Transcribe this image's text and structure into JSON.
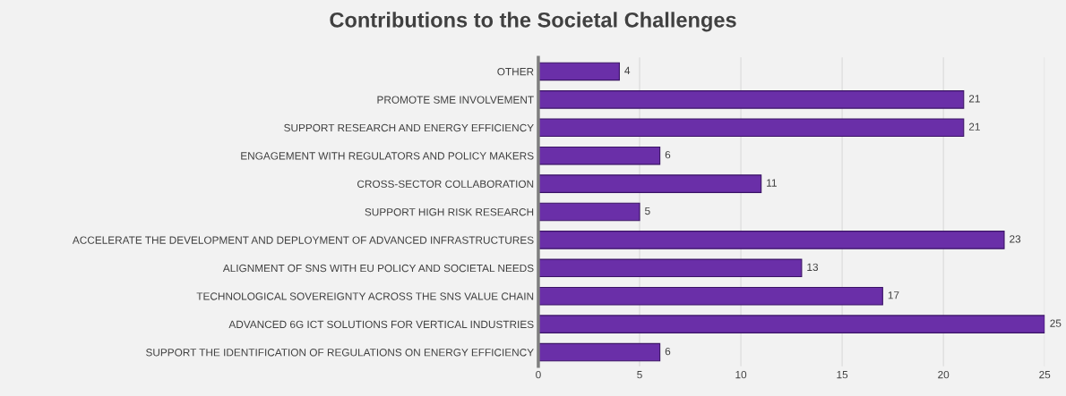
{
  "chart_data": {
    "type": "bar",
    "orientation": "horizontal",
    "title": "Contributions to the Societal Challenges",
    "categories": [
      "OTHER",
      "PROMOTE SME INVOLVEMENT",
      "SUPPORT RESEARCH AND ENERGY EFFICIENCY",
      "ENGAGEMENT WITH REGULATORS AND POLICY MAKERS",
      "CROSS-SECTOR COLLABORATION",
      "SUPPORT HIGH RISK RESEARCH",
      "ACCELERATE THE DEVELOPMENT AND DEPLOYMENT OF ADVANCED INFRASTRUCTURES",
      "ALIGNMENT OF SNS WITH EU POLICY AND SOCIETAL NEEDS",
      "TECHNOLOGICAL SOVEREIGNTY ACROSS THE SNS VALUE CHAIN",
      "ADVANCED 6G ICT SOLUTIONS FOR VERTICAL INDUSTRIES",
      "SUPPORT THE IDENTIFICATION OF REGULATIONS ON ENERGY EFFICIENCY"
    ],
    "values": [
      4,
      21,
      21,
      6,
      11,
      5,
      23,
      13,
      17,
      25,
      6
    ],
    "color": "#6a2fa8",
    "xlim": [
      0,
      25
    ],
    "xticks": [
      0,
      5,
      10,
      15,
      20,
      25
    ],
    "grid": "x",
    "data_labels": true
  }
}
